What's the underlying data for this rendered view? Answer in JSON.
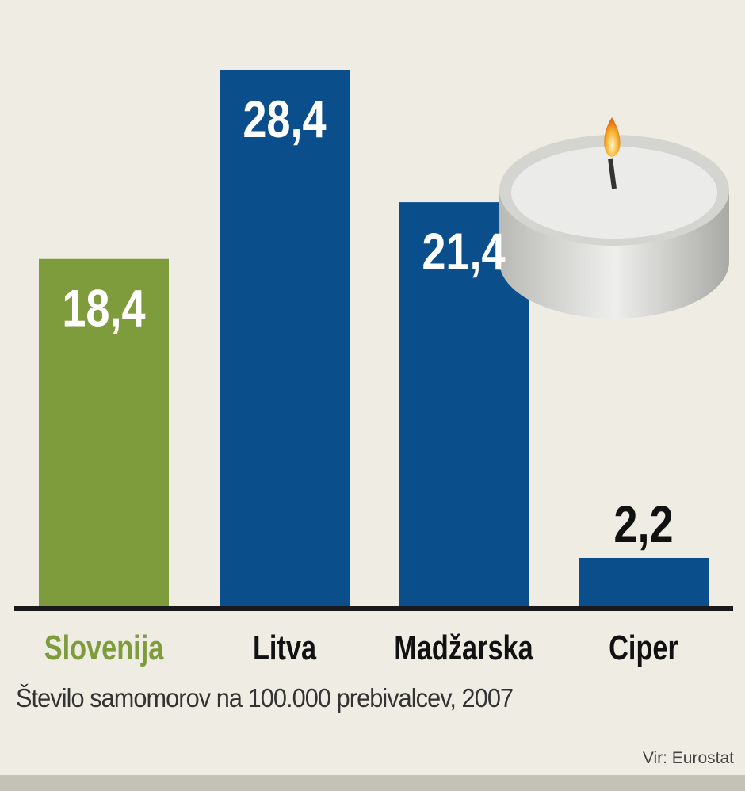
{
  "chart_data": {
    "type": "bar",
    "categories": [
      "Slovenija",
      "Litva",
      "Madžarska",
      "Ciper"
    ],
    "values": [
      18.4,
      28.4,
      21.4,
      2.2
    ],
    "value_labels": [
      "18,4",
      "28,4",
      "21,4",
      "2,2"
    ],
    "colors": [
      "#7f9c3d",
      "#0a4f8c",
      "#0a4f8c",
      "#0a4f8c"
    ],
    "category_label_colors": [
      "#7f9c3d",
      "#111111",
      "#111111",
      "#111111"
    ],
    "ylim": [
      0,
      28.4
    ],
    "grid": false,
    "caption": "Število samomorov na 100.000 prebivalcev, 2007",
    "source": "Vir: Eurostat",
    "decoration": "candle-image"
  }
}
